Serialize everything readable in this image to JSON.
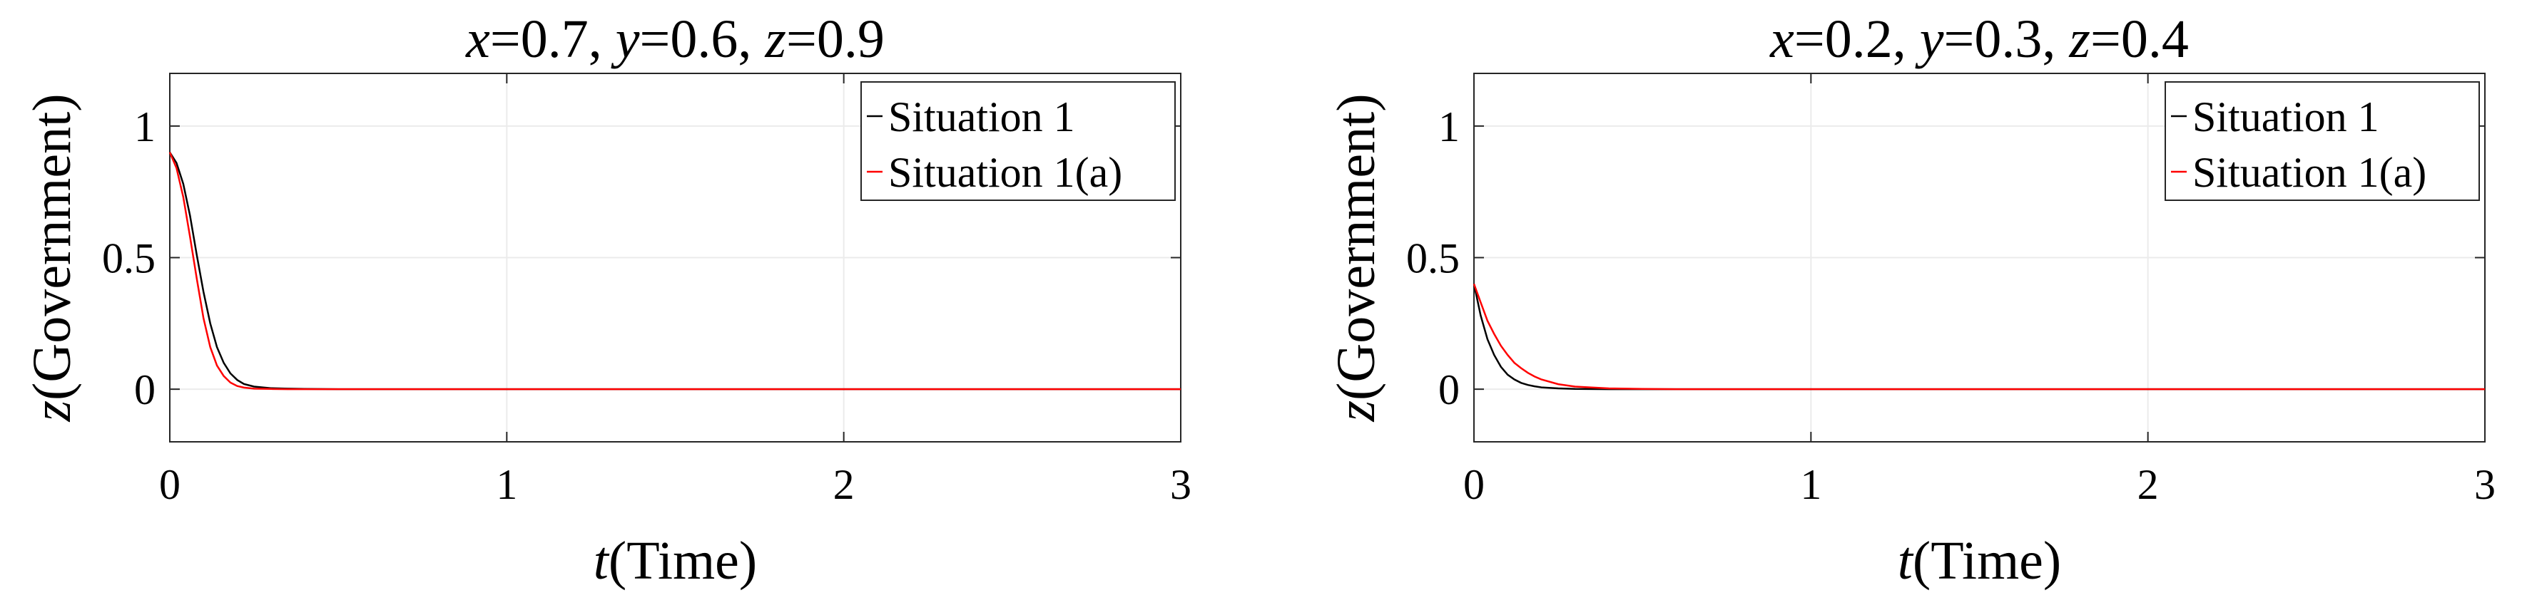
{
  "chart_data": [
    {
      "type": "line",
      "title": {
        "x_sym": "x",
        "x_val": "=0.7, ",
        "y_sym": "y",
        "y_val": "=0.6, ",
        "z_sym": "z",
        "z_val": "=0.9"
      },
      "xlabel": {
        "sym": "t",
        "text": "(Time)"
      },
      "ylabel": {
        "sym": "z",
        "text": "(Government)"
      },
      "xlim": [
        0,
        3
      ],
      "ylim": [
        -0.2,
        1.2
      ],
      "xticks": [
        "0",
        "1",
        "2",
        "3"
      ],
      "yticks": [
        "0",
        "0.5",
        "1"
      ],
      "grid": true,
      "legend_position": "top-right",
      "series": [
        {
          "name": "Situation 1",
          "color": "#000000",
          "x": [
            0,
            0.02,
            0.04,
            0.06,
            0.08,
            0.1,
            0.12,
            0.14,
            0.16,
            0.18,
            0.2,
            0.22,
            0.25,
            0.3,
            0.35,
            0.4,
            0.5,
            0.6,
            0.8,
            1.0,
            1.5,
            2.0,
            2.5,
            3.0
          ],
          "values": [
            0.9,
            0.86,
            0.78,
            0.66,
            0.51,
            0.37,
            0.25,
            0.16,
            0.1,
            0.06,
            0.035,
            0.02,
            0.01,
            0.004,
            0.002,
            0.001,
            0,
            0,
            0,
            0,
            0,
            0,
            0,
            0
          ]
        },
        {
          "name": "Situation 1(a)",
          "color": "#ff0000",
          "x": [
            0,
            0.02,
            0.04,
            0.06,
            0.08,
            0.1,
            0.12,
            0.14,
            0.16,
            0.18,
            0.2,
            0.22,
            0.25,
            0.3,
            0.35,
            0.4,
            0.5,
            0.6,
            0.8,
            1.0,
            1.5,
            2.0,
            2.5,
            3.0
          ],
          "values": [
            0.9,
            0.84,
            0.73,
            0.58,
            0.42,
            0.27,
            0.16,
            0.09,
            0.05,
            0.025,
            0.012,
            0.006,
            0.002,
            0.001,
            0,
            0,
            0,
            0,
            0,
            0,
            0,
            0,
            0,
            0
          ]
        }
      ]
    },
    {
      "type": "line",
      "title": {
        "x_sym": "x",
        "x_val": "=0.2, ",
        "y_sym": "y",
        "y_val": "=0.3, ",
        "z_sym": "z",
        "z_val": "=0.4"
      },
      "xlabel": {
        "sym": "t",
        "text": "(Time)"
      },
      "ylabel": {
        "sym": "z",
        "text": "(Government)"
      },
      "xlim": [
        0,
        3
      ],
      "ylim": [
        -0.2,
        1.2
      ],
      "xticks": [
        "0",
        "1",
        "2",
        "3"
      ],
      "yticks": [
        "0",
        "0.5",
        "1"
      ],
      "grid": true,
      "legend_position": "top-right",
      "series": [
        {
          "name": "Situation 1",
          "color": "#000000",
          "x": [
            0,
            0.02,
            0.04,
            0.06,
            0.08,
            0.1,
            0.12,
            0.14,
            0.16,
            0.18,
            0.2,
            0.25,
            0.3,
            0.4,
            0.5,
            0.6,
            0.8,
            1.0,
            1.5,
            2.0,
            2.5,
            3.0
          ],
          "values": [
            0.4,
            0.28,
            0.19,
            0.13,
            0.085,
            0.055,
            0.037,
            0.024,
            0.016,
            0.011,
            0.007,
            0.003,
            0.001,
            0,
            0,
            0,
            0,
            0,
            0,
            0,
            0,
            0
          ]
        },
        {
          "name": "Situation 1(a)",
          "color": "#ff0000",
          "x": [
            0,
            0.02,
            0.04,
            0.06,
            0.08,
            0.1,
            0.12,
            0.14,
            0.16,
            0.18,
            0.2,
            0.25,
            0.3,
            0.4,
            0.5,
            0.6,
            0.8,
            1.0,
            1.5,
            2.0,
            2.5,
            3.0
          ],
          "values": [
            0.4,
            0.33,
            0.26,
            0.21,
            0.165,
            0.13,
            0.1,
            0.08,
            0.062,
            0.048,
            0.037,
            0.019,
            0.01,
            0.003,
            0.001,
            0,
            0,
            0,
            0,
            0,
            0,
            0
          ]
        }
      ]
    }
  ]
}
